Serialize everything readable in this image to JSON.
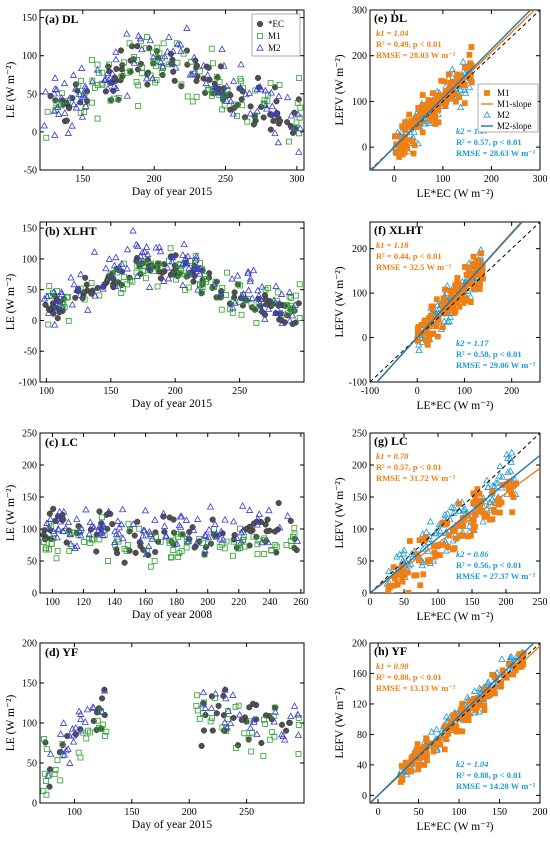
{
  "colors": {
    "ec": "#555555",
    "m1": "#2ca02c",
    "m2": "#3a3ad6",
    "m1_scatter": "#f07f14",
    "m2_scatter": "#1f9bd4",
    "m2_line": "#1f77b4",
    "one_to_one": "#000000"
  },
  "chart_data": [
    {
      "type": "scatter",
      "panel": "(a) DL",
      "xlabel": "Day of year 2015",
      "ylabel": "LE (W m⁻²)",
      "xlim": [
        120,
        305
      ],
      "ylim": [
        -50,
        160
      ],
      "xticks": [
        150,
        200,
        250,
        300
      ],
      "yticks": [
        -50,
        0,
        50,
        100,
        150
      ],
      "legend": [
        "*EC",
        "M1",
        "M2"
      ],
      "legend_position": "top-right",
      "series": [
        {
          "name": "*EC",
          "x_range": [
            123,
            303
          ],
          "pattern": "seasonal",
          "level": [
            20,
            95,
            20
          ],
          "noise": 25,
          "count": 110
        },
        {
          "name": "M1",
          "x_range": [
            123,
            303
          ],
          "pattern": "seasonal",
          "level": [
            25,
            90,
            25
          ],
          "noise": 35,
          "count": 110
        },
        {
          "name": "M2",
          "x_range": [
            123,
            303
          ],
          "pattern": "seasonal",
          "level": [
            30,
            105,
            20
          ],
          "noise": 35,
          "count": 110
        }
      ]
    },
    {
      "type": "scatter",
      "panel": "(b) XLHT",
      "xlabel": "Day of year 2015",
      "ylabel": "LE (W m⁻²)",
      "xlim": [
        95,
        300
      ],
      "ylim": [
        -100,
        160
      ],
      "xticks": [
        100,
        150,
        200,
        250
      ],
      "yticks": [
        -100,
        -50,
        0,
        50,
        100,
        150
      ],
      "series": [
        {
          "name": "*EC",
          "x_range": [
            97,
            298
          ],
          "pattern": "seasonal",
          "level": [
            15,
            90,
            15
          ],
          "noise": 20,
          "count": 130
        },
        {
          "name": "M1",
          "x_range": [
            97,
            298
          ],
          "pattern": "seasonal",
          "level": [
            20,
            85,
            20
          ],
          "noise": 30,
          "count": 110
        },
        {
          "name": "M2",
          "x_range": [
            97,
            298
          ],
          "pattern": "seasonal",
          "level": [
            25,
            100,
            20
          ],
          "noise": 35,
          "count": 110
        }
      ]
    },
    {
      "type": "scatter",
      "panel": "(c) LC",
      "xlabel": "Day of year 2008",
      "ylabel": "LE (W m⁻²)",
      "xlim": [
        92,
        262
      ],
      "ylim": [
        0,
        250
      ],
      "xticks": [
        100,
        120,
        140,
        160,
        180,
        200,
        220,
        240,
        260
      ],
      "yticks": [
        0,
        50,
        100,
        150,
        200,
        250
      ],
      "series": [
        {
          "name": "*EC",
          "x_range": [
            94,
            258
          ],
          "pattern": "flat",
          "level": [
            90,
            100,
            95
          ],
          "noise": 30,
          "count": 90
        },
        {
          "name": "M1",
          "x_range": [
            94,
            258
          ],
          "pattern": "flat",
          "level": [
            75,
            85,
            80
          ],
          "noise": 25,
          "count": 100
        },
        {
          "name": "M2",
          "x_range": [
            94,
            258
          ],
          "pattern": "flat",
          "level": [
            95,
            105,
            100
          ],
          "noise": 30,
          "count": 100
        }
      ]
    },
    {
      "type": "scatter",
      "panel": "(d) YF",
      "xlabel": "Day of year 2015",
      "ylabel": "LE (W m⁻²)",
      "xlim": [
        70,
        300
      ],
      "ylim": [
        0,
        200
      ],
      "xticks": [
        100,
        150,
        200,
        250
      ],
      "yticks": [
        0,
        50,
        100,
        150,
        200
      ],
      "gap": [
        128,
        205
      ],
      "series": [
        {
          "name": "*EC",
          "x_range": [
            72,
            298
          ],
          "pattern": "rising-gap",
          "level": [
            40,
            120,
            90
          ],
          "noise": 30,
          "count": 80
        },
        {
          "name": "M1",
          "x_range": [
            72,
            298
          ],
          "pattern": "rising-gap",
          "level": [
            40,
            110,
            90
          ],
          "noise": 30,
          "count": 80
        },
        {
          "name": "M2",
          "x_range": [
            72,
            298
          ],
          "pattern": "rising-gap",
          "level": [
            50,
            130,
            95
          ],
          "noise": 30,
          "count": 80
        }
      ]
    },
    {
      "type": "scatter",
      "panel": "(e) DL",
      "xlabel": "LE*EC (W m⁻²)",
      "ylabel": "LEFV (W m⁻²)",
      "xlim": [
        -50,
        300
      ],
      "ylim": [
        -50,
        300
      ],
      "xticks": [
        0,
        100,
        200,
        300
      ],
      "yticks": [
        0,
        100,
        200,
        300
      ],
      "legend": [
        "M1",
        "M1-slope",
        "M2",
        "M2-slope"
      ],
      "legend_position": "right",
      "stats": {
        "m1": {
          "k": "1.04",
          "r2": "0.49",
          "rmse": "28.03"
        },
        "m2": {
          "k": "1.07",
          "r2": "0.57",
          "rmse": "28.63"
        }
      },
      "cloud": {
        "x": [
          0,
          160
        ],
        "noise": 35
      }
    },
    {
      "type": "scatter",
      "panel": "(f) XLHT",
      "xlabel": "LE*EC (W m⁻²)",
      "ylabel": "LEFV (W m⁻²)",
      "xlim": [
        -100,
        260
      ],
      "ylim": [
        -100,
        260
      ],
      "xticks": [
        -100,
        0,
        100,
        200
      ],
      "yticks": [
        -100,
        0,
        100,
        200
      ],
      "stats": {
        "m1": {
          "k": "1.18",
          "r2": "0.44",
          "rmse": "32.5"
        },
        "m2": {
          "k": "1.17",
          "r2": "0.58",
          "rmse": "29.06"
        }
      },
      "cloud": {
        "x": [
          0,
          140
        ],
        "noise": 35
      }
    },
    {
      "type": "scatter",
      "panel": "(g) LC",
      "xlabel": "LE*EC (W m⁻²)",
      "ylabel": "LEFV (W m⁻²)",
      "xlim": [
        0,
        250
      ],
      "ylim": [
        0,
        250
      ],
      "xticks": [
        0,
        50,
        100,
        150,
        200,
        250
      ],
      "yticks": [
        0,
        50,
        100,
        150,
        200,
        250
      ],
      "stats": {
        "m1": {
          "k": "0.78",
          "r2": "0.57",
          "rmse": "31.72"
        },
        "m2": {
          "k": "0.86",
          "r2": "0.56",
          "rmse": "27.37"
        }
      },
      "cloud": {
        "x": [
          25,
          215
        ],
        "noise": 30
      }
    },
    {
      "type": "scatter",
      "panel": "(h) YF",
      "xlabel": "LE*EC (W m⁻²)",
      "ylabel": "LEFV (W m⁻²)",
      "xlim": [
        -10,
        200
      ],
      "ylim": [
        -10,
        200
      ],
      "xticks": [
        0,
        50,
        100,
        150,
        200
      ],
      "yticks": [
        0,
        40,
        80,
        120,
        160,
        200
      ],
      "stats": {
        "m1": {
          "k": "0.98",
          "r2": "0.88",
          "rmse": "13.13"
        },
        "m2": {
          "k": "1.04",
          "r2": "0.88",
          "rmse": "14.28"
        }
      },
      "cloud": {
        "x": [
          25,
          180
        ],
        "noise": 14
      }
    }
  ]
}
